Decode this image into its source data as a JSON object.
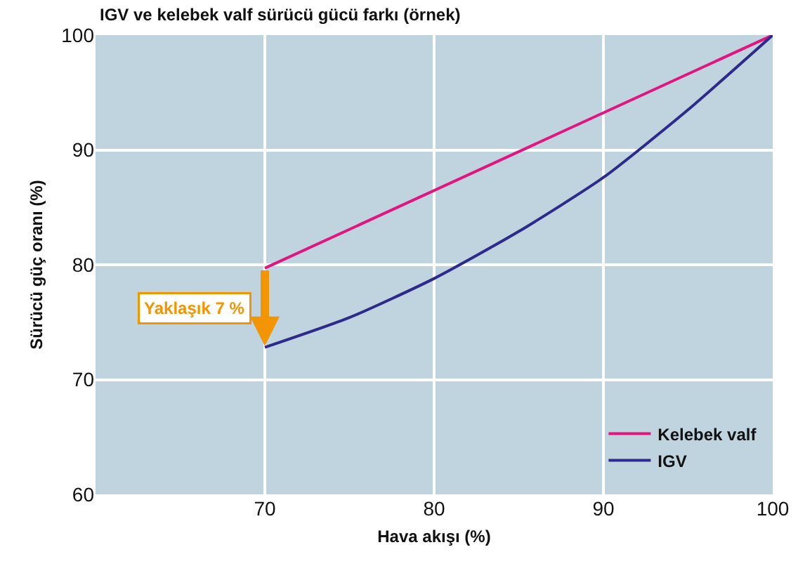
{
  "chart_data": {
    "type": "line",
    "title": "IGV ve kelebek valf sürücü gücü farkı (örnek)",
    "xlabel": "Hava akışı (%)",
    "ylabel": "Sürücü güç oranı (%)",
    "x": [
      70,
      75,
      80,
      85,
      90,
      95,
      100
    ],
    "series": [
      {
        "name": "Kelebek valf",
        "color": "#e2147f",
        "x": [
          70,
          100
        ],
        "values": [
          79.7,
          100
        ]
      },
      {
        "name": "IGV",
        "color": "#2e2a8c",
        "values": [
          72.8,
          75.4,
          78.8,
          82.9,
          87.6,
          93.5,
          100
        ]
      }
    ],
    "annotations": [
      {
        "text": "Yaklaşık 7 %",
        "x": 70,
        "y": 72.8
      }
    ],
    "xlim": [
      60,
      100
    ],
    "xticks": [
      70,
      80,
      90,
      100
    ],
    "ylim": [
      60,
      100
    ],
    "yticks": [
      60,
      70,
      80,
      90,
      100
    ],
    "grid": true,
    "legend": "bottom right",
    "marker": "none",
    "line_style": "solid"
  }
}
